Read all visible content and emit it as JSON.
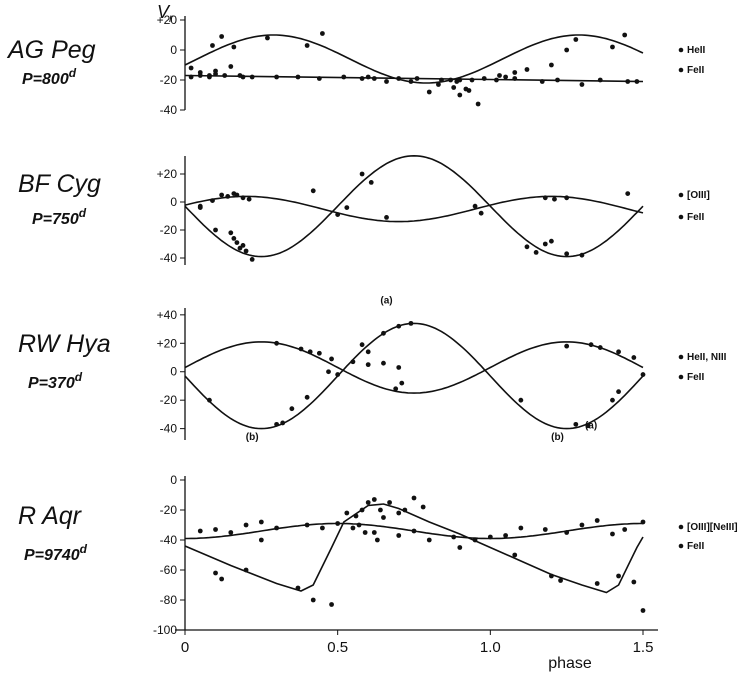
{
  "chart_data": [
    {
      "type": "line",
      "panel": "AG Peg",
      "star_name": "AG Peg",
      "period_label": "P=800",
      "period_unit": "d",
      "ylabel": "V",
      "ylabel_sub": "r",
      "ylim": [
        -40,
        20
      ],
      "yticks": [
        -40,
        -20,
        0,
        20
      ],
      "ytick_labels": [
        "-40",
        "-20",
        "0",
        "+20"
      ],
      "xlim": [
        0,
        1.5
      ],
      "legend": [
        "HeII",
        "FeII"
      ],
      "series": [
        {
          "name": "HeII",
          "shape": "sine",
          "mean": -6,
          "amp": 16,
          "peak_phase": 0.29,
          "points": [
            [
              0.02,
              -12
            ],
            [
              0.05,
              -15
            ],
            [
              0.08,
              -17
            ],
            [
              0.09,
              3
            ],
            [
              0.1,
              -14
            ],
            [
              0.12,
              9
            ],
            [
              0.15,
              -11
            ],
            [
              0.16,
              2
            ],
            [
              0.19,
              -18
            ],
            [
              0.27,
              8
            ],
            [
              0.4,
              3
            ],
            [
              0.45,
              11
            ],
            [
              0.6,
              -18
            ],
            [
              0.74,
              -21
            ],
            [
              0.8,
              -28
            ],
            [
              0.83,
              -23
            ],
            [
              0.88,
              -25
            ],
            [
              0.9,
              -30
            ],
            [
              0.92,
              -26
            ],
            [
              0.93,
              -27
            ],
            [
              0.96,
              -36
            ],
            [
              1.03,
              -17
            ],
            [
              1.08,
              -15
            ],
            [
              1.12,
              -13
            ],
            [
              1.2,
              -10
            ],
            [
              1.25,
              0
            ],
            [
              1.28,
              7
            ],
            [
              1.4,
              2
            ],
            [
              1.44,
              10
            ]
          ]
        },
        {
          "name": "FeII",
          "shape": "line",
          "y0": -17,
          "y1": -21,
          "points": [
            [
              0.02,
              -18
            ],
            [
              0.05,
              -17
            ],
            [
              0.08,
              -18
            ],
            [
              0.1,
              -16
            ],
            [
              0.13,
              -17
            ],
            [
              0.18,
              -17
            ],
            [
              0.22,
              -18
            ],
            [
              0.3,
              -18
            ],
            [
              0.37,
              -18
            ],
            [
              0.44,
              -19
            ],
            [
              0.52,
              -18
            ],
            [
              0.58,
              -19
            ],
            [
              0.62,
              -19
            ],
            [
              0.66,
              -21
            ],
            [
              0.7,
              -19
            ],
            [
              0.76,
              -19
            ],
            [
              0.84,
              -20
            ],
            [
              0.87,
              -20
            ],
            [
              0.89,
              -21
            ],
            [
              0.9,
              -20
            ],
            [
              0.94,
              -20
            ],
            [
              0.98,
              -19
            ],
            [
              1.02,
              -20
            ],
            [
              1.05,
              -18
            ],
            [
              1.08,
              -19
            ],
            [
              1.17,
              -21
            ],
            [
              1.22,
              -20
            ],
            [
              1.3,
              -23
            ],
            [
              1.36,
              -20
            ],
            [
              1.45,
              -21
            ],
            [
              1.48,
              -21
            ]
          ]
        }
      ]
    },
    {
      "type": "line",
      "panel": "BF Cyg",
      "star_name": "BF Cyg",
      "period_label": "P=750",
      "period_unit": "d",
      "ylim": [
        -45,
        30
      ],
      "yticks": [
        -40,
        -20,
        0,
        20
      ],
      "ytick_labels": [
        "-40",
        "-20",
        "0",
        "+20"
      ],
      "xlim": [
        0,
        1.5
      ],
      "legend": [
        "[OIII]",
        "FeII"
      ],
      "series": [
        {
          "name": "[OIII]",
          "shape": "sine",
          "mean": -5,
          "amp": 9,
          "peak_phase": 0.2,
          "points": [
            [
              0.05,
              -3
            ],
            [
              0.09,
              1
            ],
            [
              0.12,
              5
            ],
            [
              0.14,
              4
            ],
            [
              0.16,
              6
            ],
            [
              0.17,
              5
            ],
            [
              0.19,
              3
            ],
            [
              0.21,
              2
            ],
            [
              0.42,
              8
            ],
            [
              0.66,
              -11
            ],
            [
              0.97,
              -8
            ],
            [
              1.18,
              3
            ],
            [
              1.21,
              2
            ],
            [
              1.25,
              3
            ],
            [
              1.45,
              6
            ]
          ]
        },
        {
          "name": "FeII",
          "shape": "sine",
          "mean": -3,
          "amp": 36,
          "peak_phase": 0.75,
          "points": [
            [
              0.05,
              -4
            ],
            [
              0.1,
              -20
            ],
            [
              0.15,
              -22
            ],
            [
              0.16,
              -26
            ],
            [
              0.17,
              -29
            ],
            [
              0.18,
              -33
            ],
            [
              0.19,
              -31
            ],
            [
              0.2,
              -35
            ],
            [
              0.22,
              -41
            ],
            [
              0.5,
              -9
            ],
            [
              0.53,
              -4
            ],
            [
              0.58,
              20
            ],
            [
              0.61,
              14
            ],
            [
              0.95,
              -3
            ],
            [
              1.12,
              -32
            ],
            [
              1.15,
              -36
            ],
            [
              1.18,
              -30
            ],
            [
              1.2,
              -28
            ],
            [
              1.25,
              -37
            ],
            [
              1.3,
              -38
            ]
          ]
        }
      ]
    },
    {
      "type": "line",
      "panel": "RW Hya",
      "star_name": "RW Hya",
      "period_label": "P=370",
      "period_unit": "d",
      "ylim": [
        -48,
        42
      ],
      "yticks": [
        -40,
        -20,
        0,
        20,
        40
      ],
      "ytick_labels": [
        "-40",
        "-20",
        "0",
        "+20",
        "+40"
      ],
      "xlim": [
        0,
        1.5
      ],
      "legend": [
        "HeII, NIII",
        "FeII"
      ],
      "series": [
        {
          "name": "HeII, NIII",
          "shape": "sine",
          "mean": 3,
          "amp": 18,
          "peak_phase": 0.25,
          "points": [
            [
              0.3,
              20
            ],
            [
              0.38,
              16
            ],
            [
              0.41,
              14
            ],
            [
              0.44,
              13
            ],
            [
              0.48,
              9
            ],
            [
              0.55,
              7
            ],
            [
              0.6,
              5
            ],
            [
              0.65,
              6
            ],
            [
              0.7,
              3
            ],
            [
              1.25,
              18
            ],
            [
              1.33,
              19
            ],
            [
              1.36,
              17
            ],
            [
              1.42,
              14
            ],
            [
              1.47,
              10
            ],
            [
              1.5,
              -2
            ]
          ]
        },
        {
          "name": "FeII",
          "shape": "sine",
          "mean": -3,
          "amp": 37,
          "peak_phase": 0.75,
          "points": [
            [
              0.08,
              -20
            ],
            [
              0.3,
              -37
            ],
            [
              0.32,
              -36
            ],
            [
              0.35,
              -26
            ],
            [
              0.4,
              -18
            ],
            [
              0.47,
              0
            ],
            [
              0.5,
              -2
            ],
            [
              0.58,
              19
            ],
            [
              0.6,
              14
            ],
            [
              0.65,
              27
            ],
            [
              0.7,
              32
            ],
            [
              0.74,
              34
            ],
            [
              0.69,
              -12
            ],
            [
              0.71,
              -8
            ],
            [
              1.1,
              -20
            ],
            [
              1.28,
              -37
            ],
            [
              1.32,
              -38
            ],
            [
              1.4,
              -20
            ],
            [
              1.42,
              -14
            ]
          ]
        }
      ],
      "annotations": [
        {
          "text": "(a)",
          "x": 0.66,
          "y": 48
        },
        {
          "text": "(b)",
          "x": 0.22,
          "y": -48
        },
        {
          "text": "(b)",
          "x": 1.22,
          "y": -48
        },
        {
          "text": "(a)",
          "x": 1.33,
          "y": -40
        }
      ]
    },
    {
      "type": "line",
      "panel": "R Aqr",
      "star_name": "R Aqr",
      "period_label": "P=9740",
      "period_unit": "d",
      "ylim": [
        -100,
        0
      ],
      "yticks": [
        -100,
        -80,
        -60,
        -40,
        -20,
        0
      ],
      "ytick_labels": [
        "-100",
        "-80",
        "-60",
        "-40",
        "-20",
        "0"
      ],
      "xlim": [
        0,
        1.5
      ],
      "xticks": [
        0,
        0.5,
        1.0,
        1.5
      ],
      "xtick_labels": [
        "0",
        "0.5",
        "1.0",
        "1.5"
      ],
      "xlabel": "phase",
      "legend": [
        "[OIII][NeIII]",
        "FeII"
      ],
      "series": [
        {
          "name": "[OIII][NeIII]",
          "shape": "sine",
          "mean": -34,
          "amp": 5,
          "peak_phase": 0.5,
          "points": [
            [
              0.05,
              -34
            ],
            [
              0.1,
              -33
            ],
            [
              0.15,
              -35
            ],
            [
              0.2,
              -30
            ],
            [
              0.25,
              -28
            ],
            [
              0.3,
              -32
            ],
            [
              0.4,
              -30
            ],
            [
              0.45,
              -32
            ],
            [
              0.5,
              -29
            ],
            [
              0.55,
              -32
            ],
            [
              0.62,
              -35
            ],
            [
              0.7,
              -37
            ],
            [
              0.75,
              -34
            ],
            [
              0.8,
              -40
            ],
            [
              0.88,
              -38
            ],
            [
              0.95,
              -40
            ],
            [
              1.0,
              -38
            ],
            [
              1.05,
              -37
            ],
            [
              1.1,
              -32
            ],
            [
              1.18,
              -33
            ],
            [
              1.25,
              -35
            ],
            [
              1.3,
              -30
            ],
            [
              1.35,
              -27
            ],
            [
              1.4,
              -36
            ],
            [
              1.44,
              -33
            ],
            [
              1.5,
              -28
            ]
          ]
        },
        {
          "name": "FeII",
          "shape": "sawtooth",
          "curve": [
            [
              0,
              -44
            ],
            [
              0.15,
              -57
            ],
            [
              0.3,
              -69
            ],
            [
              0.38,
              -74
            ],
            [
              0.42,
              -70
            ],
            [
              0.48,
              -45
            ],
            [
              0.52,
              -28
            ],
            [
              0.6,
              -17
            ],
            [
              0.65,
              -16
            ],
            [
              0.7,
              -19
            ],
            [
              0.8,
              -28
            ],
            [
              0.9,
              -36
            ],
            [
              1.0,
              -45
            ],
            [
              1.1,
              -54
            ],
            [
              1.2,
              -63
            ],
            [
              1.3,
              -70
            ],
            [
              1.38,
              -75
            ],
            [
              1.42,
              -70
            ],
            [
              1.48,
              -45
            ],
            [
              1.5,
              -38
            ]
          ],
          "points": [
            [
              0.1,
              -62
            ],
            [
              0.12,
              -66
            ],
            [
              0.2,
              -60
            ],
            [
              0.25,
              -40
            ],
            [
              0.37,
              -72
            ],
            [
              0.42,
              -80
            ],
            [
              0.48,
              -83
            ],
            [
              0.53,
              -22
            ],
            [
              0.56,
              -24
            ],
            [
              0.58,
              -20
            ],
            [
              0.6,
              -15
            ],
            [
              0.62,
              -13
            ],
            [
              0.64,
              -20
            ],
            [
              0.65,
              -25
            ],
            [
              0.67,
              -15
            ],
            [
              0.7,
              -22
            ],
            [
              0.72,
              -20
            ],
            [
              0.75,
              -12
            ],
            [
              0.78,
              -18
            ],
            [
              0.57,
              -30
            ],
            [
              0.59,
              -35
            ],
            [
              0.63,
              -40
            ],
            [
              0.9,
              -45
            ],
            [
              1.08,
              -50
            ],
            [
              1.2,
              -64
            ],
            [
              1.23,
              -67
            ],
            [
              1.35,
              -69
            ],
            [
              1.42,
              -64
            ],
            [
              1.47,
              -68
            ],
            [
              1.5,
              -87
            ]
          ]
        }
      ]
    }
  ]
}
